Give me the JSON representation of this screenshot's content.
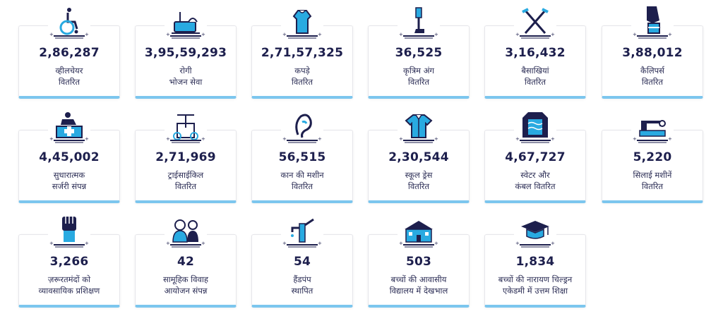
{
  "colors": {
    "dark": "#1d1f4d",
    "accent": "#29aae1",
    "bar": "#7cc6ee"
  },
  "stats": [
    {
      "icon": "wheelchair-icon",
      "value": "2,86,287",
      "line1": "व्हीलचेयर",
      "line2": "वितरित"
    },
    {
      "icon": "food-tray-icon",
      "value": "3,95,59,293",
      "line1": "रोगी",
      "line2": "भोजन सेवा"
    },
    {
      "icon": "dress-icon",
      "value": "2,71,57,325",
      "line1": "कपड़े",
      "line2": "वितरित"
    },
    {
      "icon": "prosthetic-leg-icon",
      "value": "36,525",
      "line1": "कृत्रिम अंग",
      "line2": "वितरित"
    },
    {
      "icon": "crutches-icon",
      "value": "3,16,432",
      "line1": "बैसाखियां",
      "line2": "वितरित"
    },
    {
      "icon": "caliper-icon",
      "value": "3,88,012",
      "line1": "कैलिपर्स",
      "line2": "वितरित"
    },
    {
      "icon": "surgery-icon",
      "value": "4,45,002",
      "line1": "सुधारात्मक",
      "line2": "सर्जरी संपन्न"
    },
    {
      "icon": "tricycle-icon",
      "value": "2,71,969",
      "line1": "ट्राईसाईकिल",
      "line2": "वितरित"
    },
    {
      "icon": "hearing-aid-icon",
      "value": "56,515",
      "line1": "कान की मशीन",
      "line2": "वितरित"
    },
    {
      "icon": "school-shirt-icon",
      "value": "2,30,544",
      "line1": "स्कूल ड्रेस",
      "line2": "वितरित"
    },
    {
      "icon": "sweater-icon",
      "value": "4,67,727",
      "line1": "स्वेटर और",
      "line2": "कंबल वितरित"
    },
    {
      "icon": "sewing-machine-icon",
      "value": "5,220",
      "line1": "सिलाई मशीनें",
      "line2": "वितरित"
    },
    {
      "icon": "raised-fist-icon",
      "value": "3,266",
      "line1": "ज़रूरतमंदों को",
      "line2": "व्यावसायिक प्रशिक्षण"
    },
    {
      "icon": "wedding-couple-icon",
      "value": "42",
      "line1": "सामूहिक विवाह",
      "line2": "आयोजन संपन्न"
    },
    {
      "icon": "hand-pump-icon",
      "value": "54",
      "line1": "हैंडपंप",
      "line2": "स्थापित"
    },
    {
      "icon": "school-building-icon",
      "value": "503",
      "line1": "बच्चों की आवासीय",
      "line2": "विद्यालय में देखभाल"
    },
    {
      "icon": "graduation-cap-icon",
      "value": "1,834",
      "line1": "बच्चों की नारायण चिल्ड्रन",
      "line2": "एकेडमी में उत्तम शिक्षा"
    }
  ]
}
